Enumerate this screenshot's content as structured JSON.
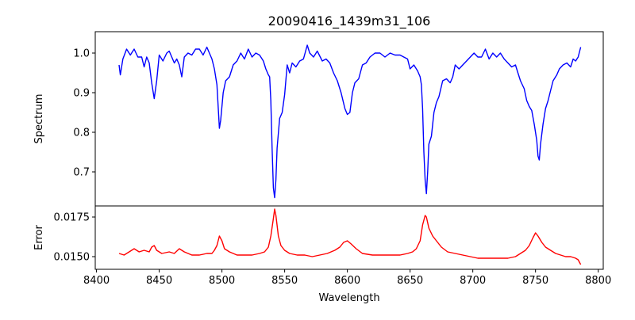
{
  "chart_data": [
    {
      "type": "line",
      "title": "20090416_1439m31_106",
      "xlabel": "",
      "ylabel": "Spectrum",
      "xlim": [
        8399,
        8804
      ],
      "ylim": [
        0.614,
        1.054
      ],
      "yticks": [
        0.7,
        0.8,
        0.9,
        1.0
      ],
      "ytick_labels": [
        "0.7",
        "0.8",
        "0.9",
        "1.0"
      ],
      "color": "#0000ff",
      "grid": false,
      "x": [
        8418,
        8419,
        8421,
        8424,
        8427,
        8430,
        8433,
        8436,
        8438,
        8440,
        8442,
        8444,
        8446,
        8448,
        8450,
        8453,
        8456,
        8458,
        8460,
        8462,
        8464,
        8466,
        8468,
        8470,
        8473,
        8476,
        8479,
        8482,
        8485,
        8488,
        8490,
        8492,
        8494,
        8496,
        8498,
        8499,
        8501,
        8503,
        8506,
        8509,
        8512,
        8515,
        8518,
        8521,
        8524,
        8527,
        8530,
        8533,
        8535,
        8537,
        8538,
        8539,
        8540,
        8541,
        8542,
        8543,
        8544,
        8546,
        8548,
        8550,
        8552,
        8554,
        8556,
        8559,
        8562,
        8565,
        8568,
        8570,
        8573,
        8576,
        8580,
        8583,
        8586,
        8589,
        8592,
        8595,
        8598,
        8600,
        8602,
        8604,
        8606,
        8609,
        8612,
        8615,
        8618,
        8622,
        8626,
        8630,
        8634,
        8638,
        8642,
        8645,
        8648,
        8650,
        8653,
        8656,
        8658,
        8659,
        8660,
        8661,
        8662,
        8663,
        8664,
        8665,
        8667,
        8669,
        8671,
        8673,
        8676,
        8679,
        8682,
        8684,
        8686,
        8689,
        8692,
        8695,
        8698,
        8701,
        8704,
        8707,
        8710,
        8713,
        8716,
        8719,
        8722,
        8725,
        8728,
        8731,
        8734,
        8736,
        8738,
        8741,
        8743,
        8745,
        8747,
        8749,
        8751,
        8752,
        8753,
        8754,
        8756,
        8758,
        8760,
        8762,
        8764,
        8767,
        8769,
        8772,
        8775,
        8778,
        8780,
        8782,
        8784,
        8786
      ],
      "y": [
        0.97,
        0.945,
        0.985,
        1.01,
        0.995,
        1.01,
        0.99,
        0.99,
        0.965,
        0.99,
        0.975,
        0.925,
        0.885,
        0.93,
        0.995,
        0.98,
        1.0,
        1.005,
        0.99,
        0.975,
        0.985,
        0.97,
        0.94,
        0.99,
        1.0,
        0.995,
        1.01,
        1.01,
        0.995,
        1.015,
        1.0,
        0.985,
        0.96,
        0.92,
        0.81,
        0.83,
        0.9,
        0.93,
        0.94,
        0.97,
        0.98,
        1.0,
        0.985,
        1.01,
        0.99,
        1.0,
        0.995,
        0.98,
        0.96,
        0.945,
        0.94,
        0.88,
        0.76,
        0.66,
        0.635,
        0.68,
        0.76,
        0.835,
        0.85,
        0.895,
        0.97,
        0.95,
        0.975,
        0.965,
        0.98,
        0.985,
        1.02,
        1.0,
        0.99,
        1.005,
        0.98,
        0.985,
        0.975,
        0.95,
        0.93,
        0.9,
        0.86,
        0.845,
        0.85,
        0.9,
        0.925,
        0.935,
        0.97,
        0.975,
        0.99,
        1.0,
        1.0,
        0.99,
        1.0,
        0.995,
        0.995,
        0.99,
        0.985,
        0.96,
        0.97,
        0.955,
        0.94,
        0.92,
        0.86,
        0.75,
        0.68,
        0.645,
        0.7,
        0.77,
        0.79,
        0.85,
        0.875,
        0.89,
        0.93,
        0.935,
        0.925,
        0.94,
        0.97,
        0.96,
        0.97,
        0.98,
        0.99,
        1.0,
        0.99,
        0.99,
        1.01,
        0.985,
        1.0,
        0.99,
        1.0,
        0.985,
        0.975,
        0.965,
        0.97,
        0.95,
        0.93,
        0.91,
        0.88,
        0.865,
        0.855,
        0.82,
        0.78,
        0.74,
        0.73,
        0.77,
        0.82,
        0.86,
        0.88,
        0.905,
        0.93,
        0.945,
        0.96,
        0.97,
        0.975,
        0.965,
        0.985,
        0.98,
        0.99,
        1.015
      ]
    },
    {
      "type": "line",
      "title": "",
      "xlabel": "Wavelength",
      "ylabel": "Error",
      "xlim": [
        8399,
        8804
      ],
      "ylim": [
        0.0142,
        0.0182
      ],
      "xticks": [
        8400,
        8450,
        8500,
        8550,
        8600,
        8650,
        8700,
        8750,
        8800
      ],
      "xtick_labels": [
        "8400",
        "8450",
        "8500",
        "8550",
        "8600",
        "8650",
        "8700",
        "8750",
        "8800"
      ],
      "yticks": [
        0.015,
        0.0175
      ],
      "ytick_labels": [
        "0.0150",
        "0.0175"
      ],
      "color": "#ff0000",
      "grid": false,
      "x": [
        8418,
        8422,
        8426,
        8430,
        8434,
        8438,
        8442,
        8444,
        8446,
        8448,
        8452,
        8458,
        8462,
        8466,
        8470,
        8476,
        8482,
        8488,
        8492,
        8494,
        8496,
        8498,
        8500,
        8502,
        8506,
        8512,
        8518,
        8524,
        8530,
        8534,
        8537,
        8539,
        8541,
        8542,
        8543,
        8545,
        8547,
        8550,
        8554,
        8560,
        8566,
        8572,
        8578,
        8584,
        8590,
        8594,
        8597,
        8600,
        8603,
        8607,
        8612,
        8620,
        8628,
        8636,
        8642,
        8648,
        8652,
        8655,
        8658,
        8660,
        8662,
        8663,
        8665,
        8668,
        8671,
        8675,
        8680,
        8686,
        8692,
        8698,
        8704,
        8710,
        8716,
        8722,
        8728,
        8734,
        8738,
        8742,
        8745,
        8748,
        8750,
        8752,
        8755,
        8758,
        8762,
        8766,
        8770,
        8774,
        8778,
        8782,
        8784,
        8786
      ],
      "y": [
        0.0152,
        0.0151,
        0.0153,
        0.0155,
        0.0153,
        0.0154,
        0.0153,
        0.0156,
        0.0157,
        0.0154,
        0.0152,
        0.0153,
        0.0152,
        0.0155,
        0.0153,
        0.0151,
        0.0151,
        0.0152,
        0.0152,
        0.0154,
        0.0157,
        0.0163,
        0.016,
        0.0155,
        0.0153,
        0.0151,
        0.0151,
        0.0151,
        0.0152,
        0.0153,
        0.0156,
        0.0163,
        0.0174,
        0.018,
        0.0176,
        0.0163,
        0.0157,
        0.0154,
        0.0152,
        0.0151,
        0.0151,
        0.015,
        0.0151,
        0.0152,
        0.0154,
        0.0156,
        0.0159,
        0.016,
        0.0158,
        0.0155,
        0.0152,
        0.0151,
        0.0151,
        0.0151,
        0.0151,
        0.0152,
        0.0153,
        0.0155,
        0.016,
        0.017,
        0.0176,
        0.0175,
        0.0168,
        0.0163,
        0.016,
        0.0156,
        0.0153,
        0.0152,
        0.0151,
        0.015,
        0.0149,
        0.0149,
        0.0149,
        0.0149,
        0.0149,
        0.015,
        0.0152,
        0.0154,
        0.0157,
        0.0162,
        0.0165,
        0.0163,
        0.0159,
        0.0156,
        0.0154,
        0.0152,
        0.0151,
        0.015,
        0.015,
        0.0149,
        0.0148,
        0.0145
      ]
    }
  ]
}
